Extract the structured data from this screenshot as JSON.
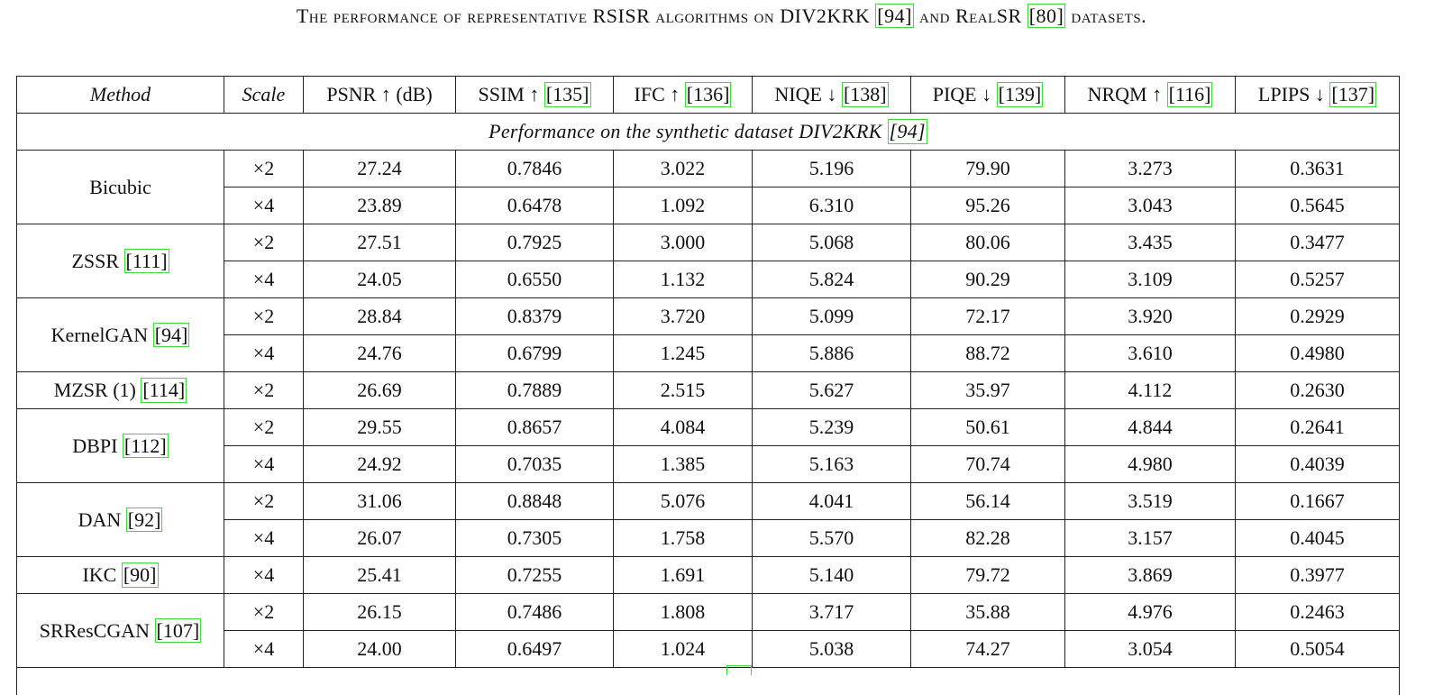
{
  "caption": {
    "text_before": "The performance of representative RSISR algorithms on DIV2KRK ",
    "ref1": "[94]",
    "text_middle": " and RealSR ",
    "ref2": "[80]",
    "text_after": " datasets."
  },
  "table": {
    "headers": [
      {
        "label": "Method",
        "ref": ""
      },
      {
        "label": "Scale",
        "ref": ""
      },
      {
        "label": "PSNR ↑ (dB)",
        "ref": ""
      },
      {
        "label": "SSIM ↑ ",
        "ref": "[135]"
      },
      {
        "label": "IFC ↑ ",
        "ref": "[136]"
      },
      {
        "label": "NIQE ↓ ",
        "ref": "[138]"
      },
      {
        "label": "PIQE ↓ ",
        "ref": "[139]"
      },
      {
        "label": "NRQM ↑ ",
        "ref": "[116]"
      },
      {
        "label": "LPIPS ↓ ",
        "ref": "[137]"
      }
    ],
    "section": {
      "text": "Performance on the synthetic dataset DIV2KRK ",
      "ref": "[94]"
    },
    "methods": [
      {
        "name": "Bicubic",
        "ref": "",
        "rows": [
          {
            "scale": "×2",
            "psnr": "27.24",
            "ssim": "0.7846",
            "ifc": "3.022",
            "niqe": "5.196",
            "piqe": "79.90",
            "nrqm": "3.273",
            "lpips": "0.3631"
          },
          {
            "scale": "×4",
            "psnr": "23.89",
            "ssim": "0.6478",
            "ifc": "1.092",
            "niqe": "6.310",
            "piqe": "95.26",
            "nrqm": "3.043",
            "lpips": "0.5645"
          }
        ]
      },
      {
        "name": "ZSSR ",
        "ref": "[111]",
        "rows": [
          {
            "scale": "×2",
            "psnr": "27.51",
            "ssim": "0.7925",
            "ifc": "3.000",
            "niqe": "5.068",
            "piqe": "80.06",
            "nrqm": "3.435",
            "lpips": "0.3477"
          },
          {
            "scale": "×4",
            "psnr": "24.05",
            "ssim": "0.6550",
            "ifc": "1.132",
            "niqe": "5.824",
            "piqe": "90.29",
            "nrqm": "3.109",
            "lpips": "0.5257"
          }
        ]
      },
      {
        "name": "KernelGAN ",
        "ref": "[94]",
        "rows": [
          {
            "scale": "×2",
            "psnr": "28.84",
            "ssim": "0.8379",
            "ifc": "3.720",
            "niqe": "5.099",
            "piqe": "72.17",
            "nrqm": "3.920",
            "lpips": "0.2929"
          },
          {
            "scale": "×4",
            "psnr": "24.76",
            "ssim": "0.6799",
            "ifc": "1.245",
            "niqe": "5.886",
            "piqe": "88.72",
            "nrqm": "3.610",
            "lpips": "0.4980"
          }
        ]
      },
      {
        "name": "MZSR (1) ",
        "ref": "[114]",
        "rows": [
          {
            "scale": "×2",
            "psnr": "26.69",
            "ssim": "0.7889",
            "ifc": "2.515",
            "niqe": "5.627",
            "piqe": "35.97",
            "nrqm": "4.112",
            "lpips": "0.2630"
          }
        ]
      },
      {
        "name": "DBPI ",
        "ref": "[112]",
        "rows": [
          {
            "scale": "×2",
            "psnr": "29.55",
            "ssim": "0.8657",
            "ifc": "4.084",
            "niqe": "5.239",
            "piqe": "50.61",
            "nrqm": "4.844",
            "lpips": "0.2641"
          },
          {
            "scale": "×4",
            "psnr": "24.92",
            "ssim": "0.7035",
            "ifc": "1.385",
            "niqe": "5.163",
            "piqe": "70.74",
            "nrqm": "4.980",
            "lpips": "0.4039"
          }
        ]
      },
      {
        "name": "DAN ",
        "ref": "[92]",
        "rows": [
          {
            "scale": "×2",
            "psnr": "31.06",
            "ssim": "0.8848",
            "ifc": "5.076",
            "niqe": "4.041",
            "piqe": "56.14",
            "nrqm": "3.519",
            "lpips": "0.1667"
          },
          {
            "scale": "×4",
            "psnr": "26.07",
            "ssim": "0.7305",
            "ifc": "1.758",
            "niqe": "5.570",
            "piqe": "82.28",
            "nrqm": "3.157",
            "lpips": "0.4045"
          }
        ]
      },
      {
        "name": "IKC ",
        "ref": "[90]",
        "rows": [
          {
            "scale": "×4",
            "psnr": "25.41",
            "ssim": "0.7255",
            "ifc": "1.691",
            "niqe": "5.140",
            "piqe": "79.72",
            "nrqm": "3.869",
            "lpips": "0.3977"
          }
        ]
      },
      {
        "name": "SRResCGAN ",
        "ref": "[107]",
        "rows": [
          {
            "scale": "×2",
            "psnr": "26.15",
            "ssim": "0.7486",
            "ifc": "1.808",
            "niqe": "3.717",
            "piqe": "35.88",
            "nrqm": "4.976",
            "lpips": "0.2463"
          },
          {
            "scale": "×4",
            "psnr": "24.00",
            "ssim": "0.6497",
            "ifc": "1.024",
            "niqe": "5.038",
            "piqe": "74.27",
            "nrqm": "3.054",
            "lpips": "0.5054"
          }
        ]
      }
    ]
  },
  "colors": {
    "link_box": "#3ddc3d",
    "rule": "#222222"
  }
}
